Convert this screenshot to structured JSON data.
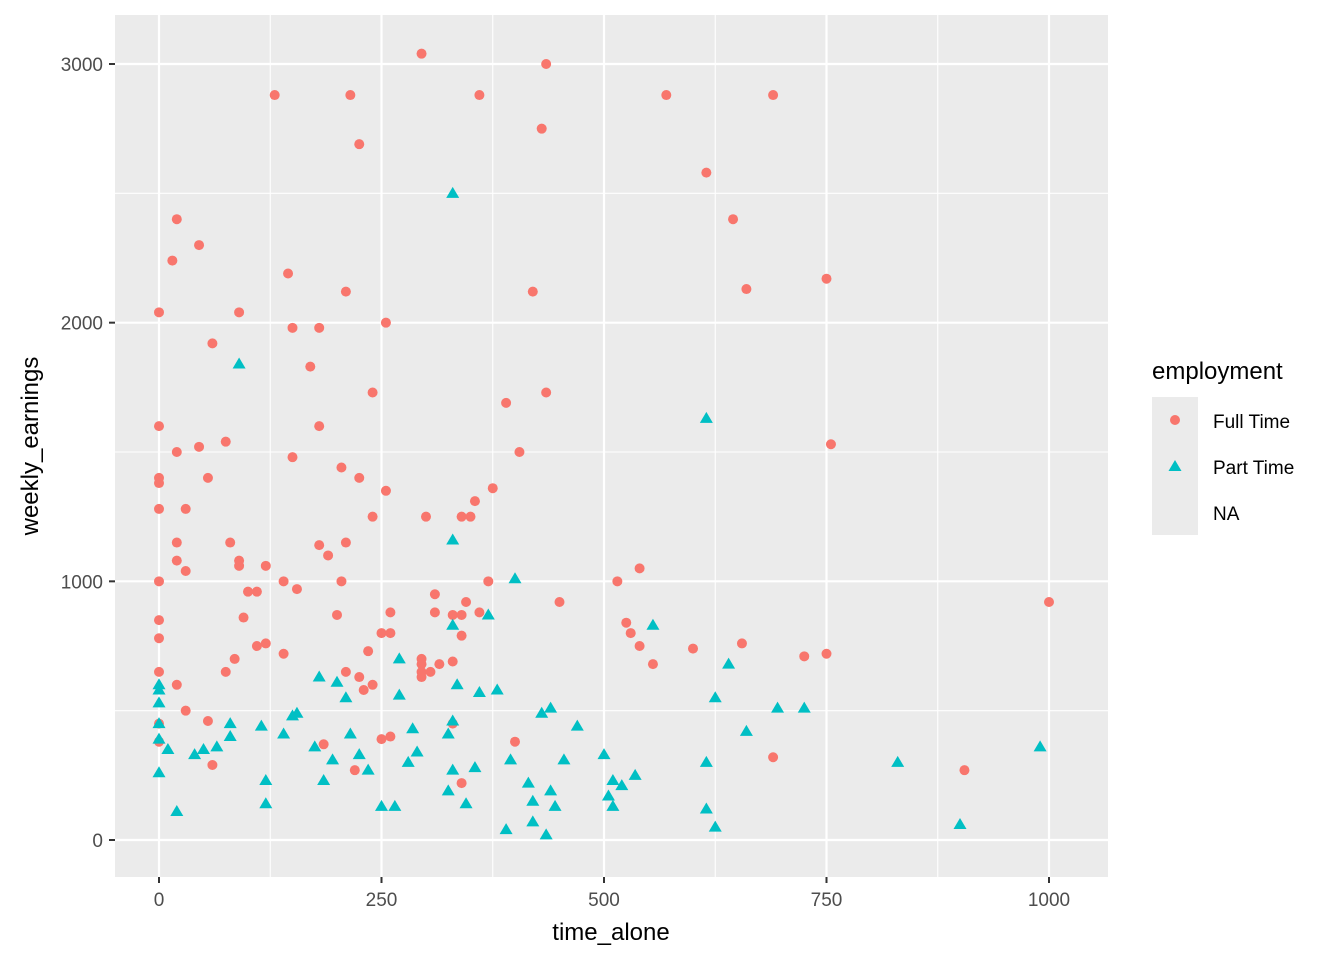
{
  "chart_data": {
    "type": "scatter",
    "title": "",
    "xlabel": "time_alone",
    "ylabel": "weekly_earnings",
    "xlim": [
      -50,
      1065
    ],
    "ylim": [
      -145,
      3195
    ],
    "x_ticks": [
      0,
      250,
      500,
      750,
      1000
    ],
    "y_ticks": [
      0,
      1000,
      2000,
      3000
    ],
    "x_tick_labels": [
      "0",
      "250",
      "500",
      "750",
      "1000"
    ],
    "y_tick_labels": [
      "0",
      "1000",
      "2000",
      "3000"
    ],
    "grid": true,
    "legend_position": "right",
    "legend": {
      "title": "employment",
      "entries": [
        {
          "label": "Full Time",
          "shape": "circle",
          "color": "#F8766D"
        },
        {
          "label": "Part Time",
          "shape": "triangle",
          "color": "#00BFC4"
        },
        {
          "label": "NA",
          "shape": "none",
          "color": ""
        }
      ]
    },
    "series": [
      {
        "name": "Full Time",
        "shape": "circle",
        "color": "#F8766D",
        "points": [
          [
            0,
            2040
          ],
          [
            0,
            1600
          ],
          [
            0,
            1400
          ],
          [
            0,
            1380
          ],
          [
            0,
            1280
          ],
          [
            0,
            1000
          ],
          [
            0,
            850
          ],
          [
            0,
            780
          ],
          [
            0,
            650
          ],
          [
            0,
            450
          ],
          [
            0,
            380
          ],
          [
            15,
            2240
          ],
          [
            20,
            2400
          ],
          [
            20,
            1500
          ],
          [
            20,
            1150
          ],
          [
            20,
            1080
          ],
          [
            20,
            600
          ],
          [
            30,
            1280
          ],
          [
            30,
            1040
          ],
          [
            30,
            500
          ],
          [
            45,
            2300
          ],
          [
            45,
            1520
          ],
          [
            55,
            1400
          ],
          [
            55,
            460
          ],
          [
            60,
            1920
          ],
          [
            60,
            290
          ],
          [
            75,
            1540
          ],
          [
            75,
            650
          ],
          [
            80,
            1150
          ],
          [
            85,
            700
          ],
          [
            90,
            2040
          ],
          [
            90,
            1080
          ],
          [
            90,
            1060
          ],
          [
            95,
            860
          ],
          [
            100,
            960
          ],
          [
            110,
            960
          ],
          [
            110,
            750
          ],
          [
            120,
            1060
          ],
          [
            120,
            760
          ],
          [
            130,
            2880
          ],
          [
            140,
            1000
          ],
          [
            140,
            720
          ],
          [
            145,
            2190
          ],
          [
            150,
            1980
          ],
          [
            150,
            1480
          ],
          [
            155,
            970
          ],
          [
            170,
            1830
          ],
          [
            180,
            1980
          ],
          [
            180,
            1600
          ],
          [
            180,
            1140
          ],
          [
            185,
            370
          ],
          [
            190,
            1100
          ],
          [
            200,
            870
          ],
          [
            205,
            1440
          ],
          [
            205,
            1000
          ],
          [
            210,
            2120
          ],
          [
            210,
            1150
          ],
          [
            210,
            650
          ],
          [
            215,
            2880
          ],
          [
            220,
            270
          ],
          [
            225,
            2690
          ],
          [
            225,
            1400
          ],
          [
            225,
            630
          ],
          [
            230,
            580
          ],
          [
            235,
            730
          ],
          [
            240,
            1730
          ],
          [
            240,
            1250
          ],
          [
            240,
            600
          ],
          [
            250,
            800
          ],
          [
            250,
            390
          ],
          [
            255,
            2000
          ],
          [
            255,
            1350
          ],
          [
            260,
            880
          ],
          [
            260,
            800
          ],
          [
            260,
            400
          ],
          [
            295,
            3040
          ],
          [
            295,
            700
          ],
          [
            295,
            680
          ],
          [
            295,
            650
          ],
          [
            295,
            630
          ],
          [
            300,
            1250
          ],
          [
            305,
            650
          ],
          [
            310,
            950
          ],
          [
            310,
            880
          ],
          [
            315,
            680
          ],
          [
            330,
            870
          ],
          [
            330,
            690
          ],
          [
            330,
            450
          ],
          [
            340,
            1250
          ],
          [
            340,
            870
          ],
          [
            340,
            790
          ],
          [
            340,
            220
          ],
          [
            345,
            920
          ],
          [
            350,
            1250
          ],
          [
            355,
            1310
          ],
          [
            360,
            2880
          ],
          [
            360,
            880
          ],
          [
            370,
            1000
          ],
          [
            375,
            1360
          ],
          [
            390,
            1690
          ],
          [
            400,
            380
          ],
          [
            405,
            1500
          ],
          [
            420,
            2120
          ],
          [
            430,
            2750
          ],
          [
            435,
            3000
          ],
          [
            435,
            1730
          ],
          [
            450,
            920
          ],
          [
            515,
            1000
          ],
          [
            525,
            840
          ],
          [
            530,
            800
          ],
          [
            540,
            1050
          ],
          [
            540,
            750
          ],
          [
            555,
            680
          ],
          [
            570,
            2880
          ],
          [
            600,
            740
          ],
          [
            615,
            2580
          ],
          [
            645,
            2400
          ],
          [
            655,
            760
          ],
          [
            660,
            2130
          ],
          [
            690,
            320
          ],
          [
            690,
            2880
          ],
          [
            725,
            710
          ],
          [
            750,
            2170
          ],
          [
            750,
            720
          ],
          [
            755,
            1530
          ],
          [
            905,
            270
          ],
          [
            1000,
            920
          ]
        ]
      },
      {
        "name": "Part Time",
        "shape": "triangle",
        "color": "#00BFC4",
        "points": [
          [
            0,
            600
          ],
          [
            0,
            580
          ],
          [
            0,
            530
          ],
          [
            0,
            450
          ],
          [
            0,
            390
          ],
          [
            0,
            260
          ],
          [
            10,
            350
          ],
          [
            20,
            110
          ],
          [
            40,
            330
          ],
          [
            50,
            350
          ],
          [
            65,
            360
          ],
          [
            80,
            450
          ],
          [
            80,
            400
          ],
          [
            90,
            1840
          ],
          [
            115,
            440
          ],
          [
            120,
            230
          ],
          [
            120,
            140
          ],
          [
            140,
            410
          ],
          [
            150,
            480
          ],
          [
            155,
            490
          ],
          [
            175,
            360
          ],
          [
            180,
            630
          ],
          [
            185,
            230
          ],
          [
            195,
            310
          ],
          [
            200,
            610
          ],
          [
            210,
            550
          ],
          [
            215,
            410
          ],
          [
            225,
            330
          ],
          [
            235,
            270
          ],
          [
            250,
            130
          ],
          [
            265,
            130
          ],
          [
            270,
            700
          ],
          [
            270,
            560
          ],
          [
            280,
            300
          ],
          [
            285,
            430
          ],
          [
            290,
            340
          ],
          [
            325,
            410
          ],
          [
            325,
            190
          ],
          [
            330,
            2500
          ],
          [
            330,
            1160
          ],
          [
            330,
            830
          ],
          [
            330,
            460
          ],
          [
            330,
            270
          ],
          [
            335,
            600
          ],
          [
            345,
            140
          ],
          [
            355,
            280
          ],
          [
            360,
            570
          ],
          [
            370,
            870
          ],
          [
            380,
            580
          ],
          [
            390,
            40
          ],
          [
            395,
            310
          ],
          [
            400,
            1010
          ],
          [
            415,
            220
          ],
          [
            420,
            70
          ],
          [
            420,
            150
          ],
          [
            430,
            490
          ],
          [
            435,
            20
          ],
          [
            440,
            510
          ],
          [
            440,
            190
          ],
          [
            445,
            130
          ],
          [
            455,
            310
          ],
          [
            470,
            440
          ],
          [
            500,
            330
          ],
          [
            505,
            170
          ],
          [
            510,
            130
          ],
          [
            510,
            230
          ],
          [
            520,
            210
          ],
          [
            535,
            250
          ],
          [
            555,
            830
          ],
          [
            615,
            1630
          ],
          [
            615,
            300
          ],
          [
            615,
            120
          ],
          [
            625,
            50
          ],
          [
            625,
            550
          ],
          [
            640,
            680
          ],
          [
            660,
            420
          ],
          [
            695,
            510
          ],
          [
            725,
            510
          ],
          [
            830,
            300
          ],
          [
            900,
            60
          ],
          [
            990,
            360
          ]
        ]
      }
    ]
  },
  "legend": {
    "title": "employment",
    "items": [
      {
        "label": "Full Time"
      },
      {
        "label": "Part Time"
      },
      {
        "label": "NA"
      }
    ]
  },
  "axes": {
    "x_title": "time_alone",
    "y_title": "weekly_earnings"
  }
}
